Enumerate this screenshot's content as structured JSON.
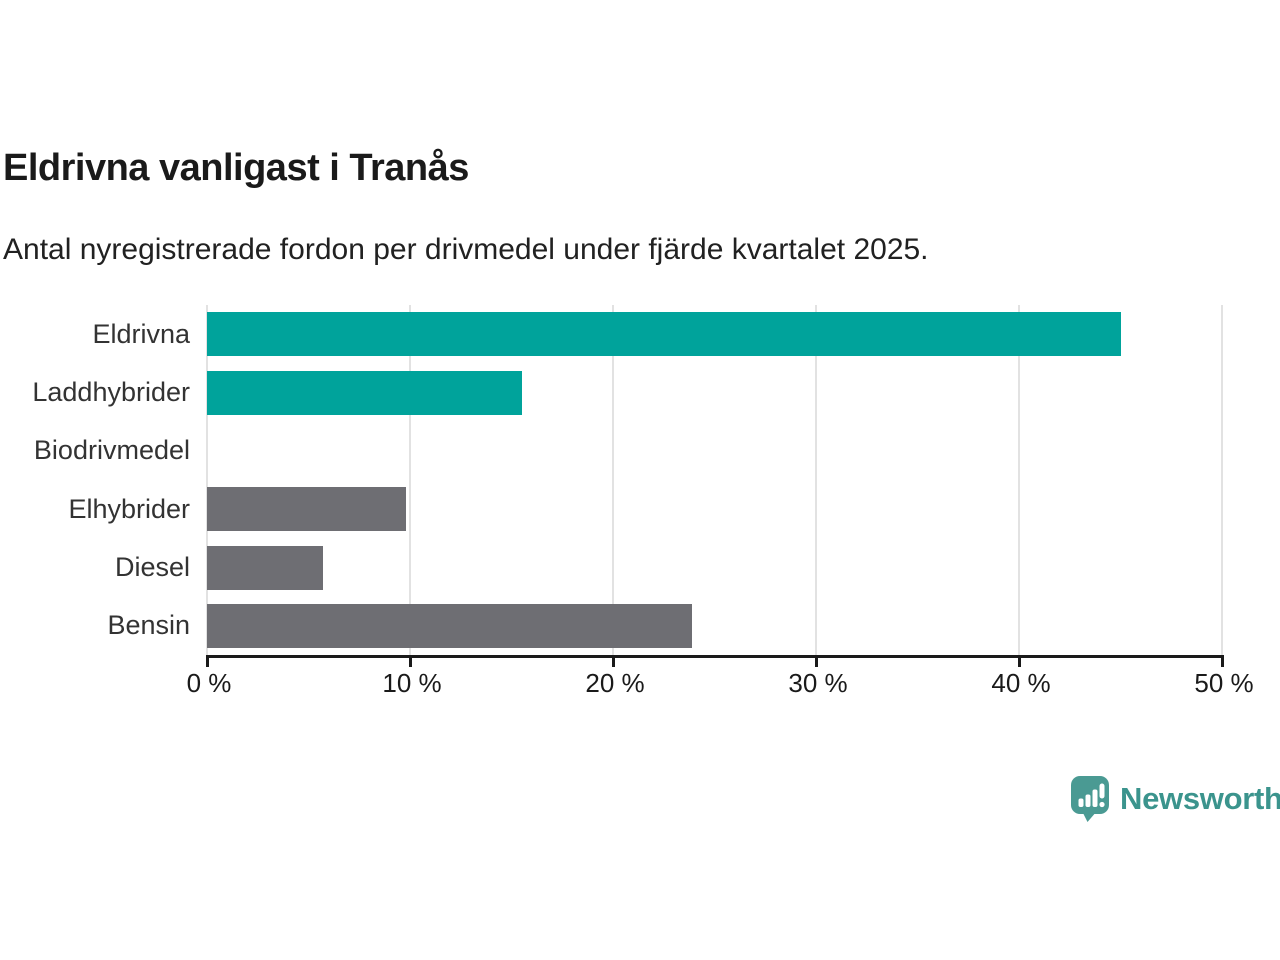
{
  "chart_data": {
    "type": "bar",
    "orientation": "horizontal",
    "title": "Eldrivna vanligast i Tranås",
    "subtitle": "Antal nyregistrerade fordon per drivmedel under fjärde kvartalet 2025.",
    "categories": [
      "Eldrivna",
      "Laddhybrider",
      "Biodrivmedel",
      "Elhybrider",
      "Diesel",
      "Bensin"
    ],
    "values": [
      45.0,
      15.5,
      0,
      9.8,
      5.7,
      23.9
    ],
    "unit": "%",
    "bar_colors": [
      "#00a39b",
      "#00a39b",
      "#00a39b",
      "#6e6e73",
      "#6e6e73",
      "#6e6e73"
    ],
    "xlim": [
      0,
      50
    ],
    "x_tick_values": [
      0,
      10,
      20,
      30,
      40,
      50
    ],
    "x_tick_labels": [
      "0 %",
      "10 %",
      "20 %",
      "30 %",
      "40 %",
      "50 %"
    ],
    "grid": true,
    "legend": "none",
    "colors": {
      "accent_teal": "#00a39b",
      "neutral_gray": "#6e6e73",
      "gridline": "#e2e2e2",
      "axis": "#1a1a1a",
      "text": "#333333"
    }
  },
  "branding": {
    "logo_text": "Newsworthy",
    "logo_icon": "newsworthy-chart-bubble-icon",
    "logo_color": "#3b948d",
    "logo_icon_color": "#4a9a93"
  }
}
